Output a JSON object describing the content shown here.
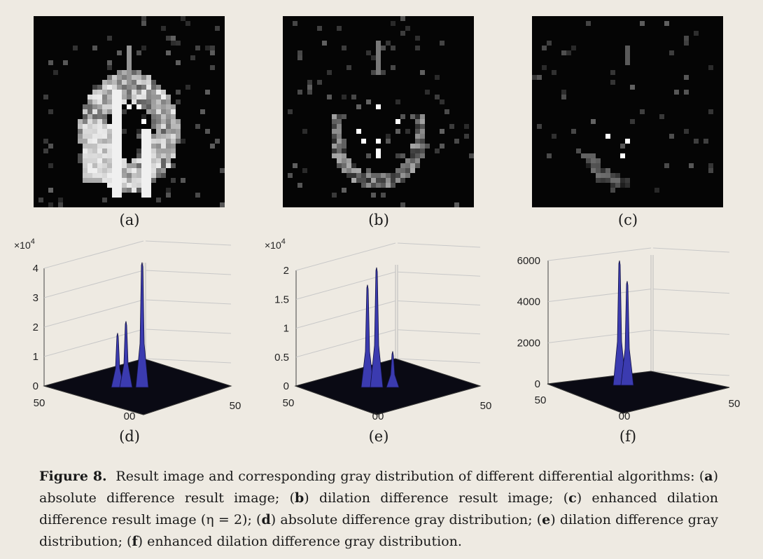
{
  "subfigures": [
    {
      "label": "(a)",
      "type": "image"
    },
    {
      "label": "(b)",
      "type": "image"
    },
    {
      "label": "(c)",
      "type": "image"
    },
    {
      "label": "(d)",
      "type": "surface-plot"
    },
    {
      "label": "(e)",
      "type": "surface-plot"
    },
    {
      "label": "(f)",
      "type": "surface-plot"
    }
  ],
  "colors": {
    "background": "#eeeae2",
    "surface": "#3b3bb0",
    "image_bg": "#050505"
  },
  "chart_data": [
    {
      "type": "surface",
      "panel": "(d)",
      "exponent_prefix": "×10",
      "exponent_power": "4",
      "zticks": [
        "0",
        "1",
        "2",
        "3",
        "4"
      ],
      "zlim": [
        0,
        4
      ],
      "xticks": [
        "50",
        "00",
        "50"
      ],
      "peaks": [
        1.8,
        2.2,
        4.2
      ]
    },
    {
      "type": "surface",
      "panel": "(e)",
      "exponent_prefix": "×10",
      "exponent_power": "4",
      "zticks": [
        "0",
        "0.5",
        "1",
        "1.5",
        "2"
      ],
      "zlim": [
        0,
        2
      ],
      "xticks": [
        "50",
        "00",
        "50"
      ],
      "peaks": [
        1.75,
        2.05,
        0.6
      ]
    },
    {
      "type": "surface",
      "panel": "(f)",
      "exponent_prefix": "",
      "exponent_power": "",
      "zticks": [
        "0",
        "2000",
        "4000",
        "6000"
      ],
      "zlim": [
        0,
        6000
      ],
      "xticks": [
        "50",
        "00",
        "50"
      ],
      "peaks": [
        6000,
        5000
      ]
    }
  ],
  "caption": {
    "figure_label": "Figure 8.",
    "intro": "Result image and corresponding gray distribution of different differential algorithms:",
    "items": [
      {
        "key": "a",
        "text": "absolute difference result image;"
      },
      {
        "key": "b",
        "text": "dilation difference result image;"
      },
      {
        "key": "c",
        "text": "enhanced dilation difference result image (η = 2);"
      },
      {
        "key": "d",
        "text": "absolute difference gray distribution;"
      },
      {
        "key": "e",
        "text": "dilation difference gray distribution;"
      },
      {
        "key": "f",
        "text": "enhanced dilation difference gray distribution."
      }
    ]
  }
}
